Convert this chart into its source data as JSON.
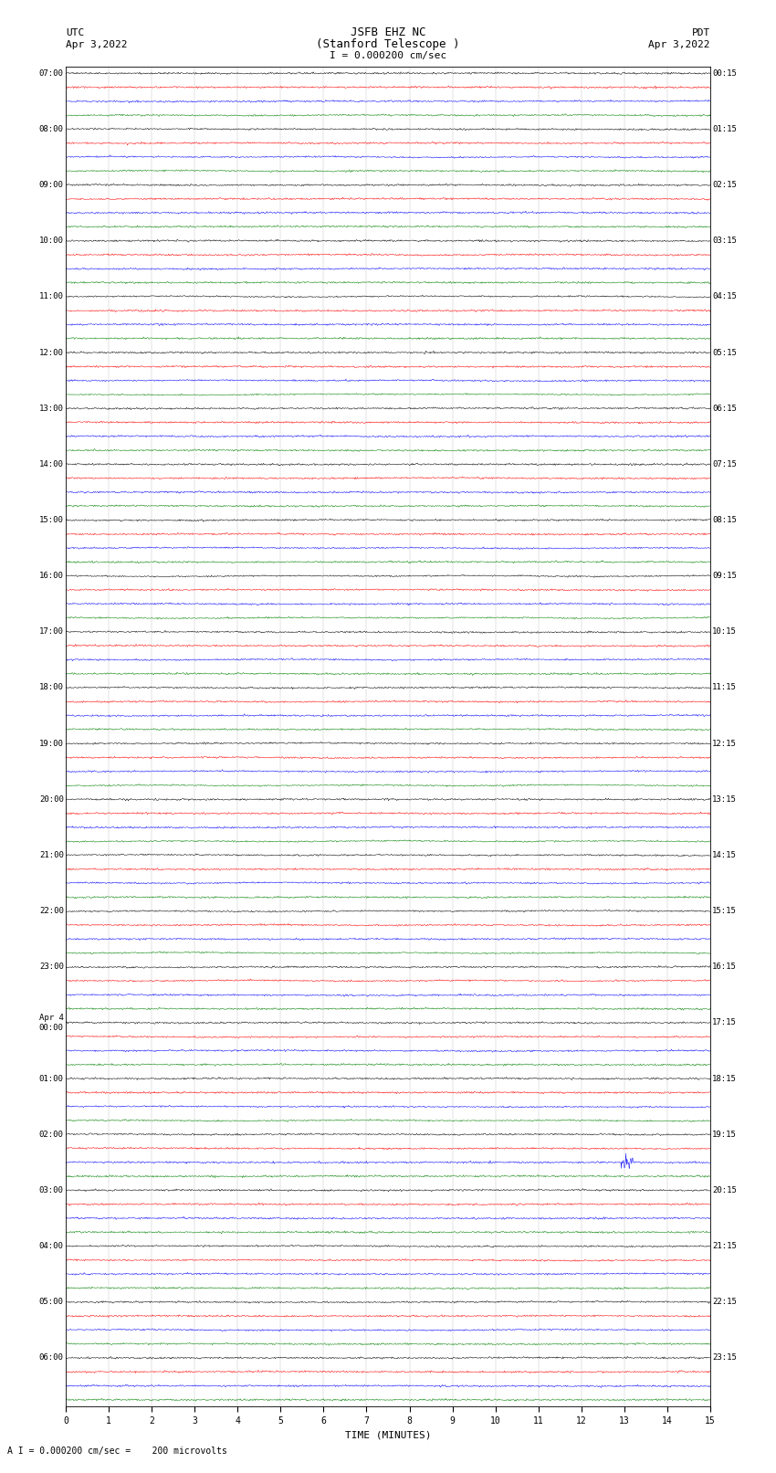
{
  "title_line1": "JSFB EHZ NC",
  "title_line2": "(Stanford Telescope )",
  "scale_text": "I = 0.000200 cm/sec",
  "left_label_line1": "UTC",
  "left_label_line2": "Apr 3,2022",
  "right_label_line1": "PDT",
  "right_label_line2": "Apr 3,2022",
  "bottom_label": "A I = 0.000200 cm/sec =    200 microvolts",
  "xlabel": "TIME (MINUTES)",
  "left_times": [
    "07:00",
    "08:00",
    "09:00",
    "10:00",
    "11:00",
    "12:00",
    "13:00",
    "14:00",
    "15:00",
    "16:00",
    "17:00",
    "18:00",
    "19:00",
    "20:00",
    "21:00",
    "22:00",
    "23:00",
    "Apr 4\n00:00",
    "01:00",
    "02:00",
    "03:00",
    "04:00",
    "05:00",
    "06:00"
  ],
  "right_times": [
    "00:15",
    "01:15",
    "02:15",
    "03:15",
    "04:15",
    "05:15",
    "06:15",
    "07:15",
    "08:15",
    "09:15",
    "10:15",
    "11:15",
    "12:15",
    "13:15",
    "14:15",
    "15:15",
    "16:15",
    "17:15",
    "18:15",
    "19:15",
    "20:15",
    "21:15",
    "22:15",
    "23:15"
  ],
  "n_groups": 24,
  "n_per_group": 4,
  "colors": [
    "black",
    "red",
    "blue",
    "green"
  ],
  "fig_width": 8.5,
  "fig_height": 16.13,
  "bg_color": "white",
  "time_minutes": 15,
  "dpi": 100,
  "trace_amplitude": 0.12,
  "linewidth": 0.35
}
